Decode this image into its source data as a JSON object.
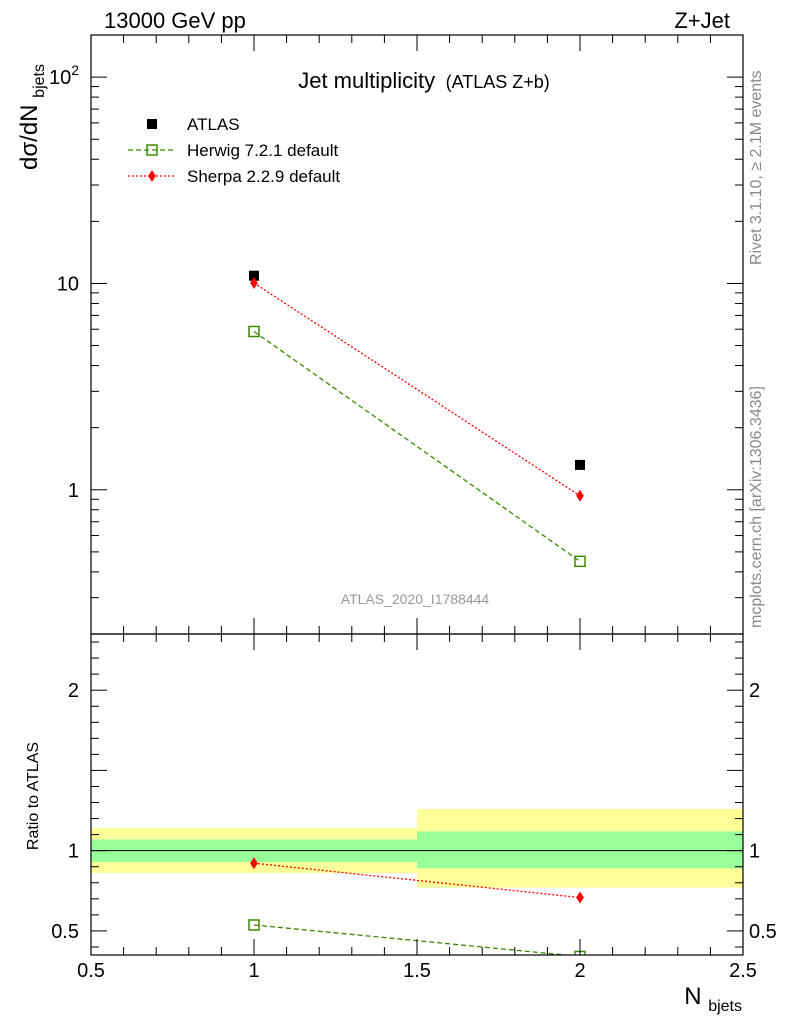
{
  "header": {
    "left": "13000 GeV pp",
    "right": "Z+Jet"
  },
  "side_text": {
    "rivet": "Rivet 3.1.10, ≥ 2.1M events",
    "mcplots": "mcplots.cern.ch [arXiv:1306.3436]"
  },
  "chart_data": [
    {
      "panel": "main",
      "type": "scatter",
      "title": "Jet multiplicity",
      "subtitle": "(ATLAS Z+b)",
      "ylabel": "dσ/dN",
      "ylabel_sub": "bjets",
      "yscale": "log",
      "ylim": [
        0.2,
        160
      ],
      "xlim": [
        0.5,
        2.5
      ],
      "y_ticks": [
        {
          "value": 1,
          "label": "1"
        },
        {
          "value": 10,
          "label": "10"
        },
        {
          "value": 100,
          "label": "10",
          "sup": "2"
        }
      ],
      "watermark": "ATLAS_2020_I1788444",
      "legend_position": "top-left",
      "series": [
        {
          "name": "ATLAS",
          "x": [
            1,
            2
          ],
          "values": [
            10.9,
            1.32
          ],
          "color": "#000000",
          "marker": "filled-square"
        },
        {
          "name": "Herwig 7.2.1 default",
          "x": [
            1,
            2
          ],
          "values": [
            5.85,
            0.45
          ],
          "color": "#3a8a00",
          "marker": "open-square",
          "line": "dashed"
        },
        {
          "name": "Sherpa 2.2.9 default",
          "x": [
            1,
            2
          ],
          "values": [
            10.05,
            0.935
          ],
          "color": "#ff0000",
          "marker": "diamond",
          "line": "dotted"
        }
      ]
    },
    {
      "panel": "ratio",
      "type": "line",
      "ylabel": "Ratio to ATLAS",
      "xlabel": "N",
      "xlabel_sub": "bjets",
      "ylim": [
        0.35,
        2.35
      ],
      "xlim": [
        0.5,
        2.5
      ],
      "x_ticks": [
        {
          "value": 0.5,
          "label": "0.5"
        },
        {
          "value": 1,
          "label": "1"
        },
        {
          "value": 1.5,
          "label": "1.5"
        },
        {
          "value": 2,
          "label": "2"
        },
        {
          "value": 2.5,
          "label": "2.5"
        }
      ],
      "y_ticks": [
        {
          "value": 0.5,
          "label": "0.5"
        },
        {
          "value": 1,
          "label": "1"
        },
        {
          "value": 2,
          "label": "2"
        }
      ],
      "bands": [
        {
          "x0": 0.5,
          "x1": 1.5,
          "inner": [
            0.93,
            1.07
          ],
          "outer": [
            0.86,
            1.14
          ]
        },
        {
          "x0": 1.5,
          "x1": 2.5,
          "inner": [
            0.89,
            1.12
          ],
          "outer": [
            0.77,
            1.26
          ]
        }
      ],
      "series": [
        {
          "name": "Herwig 7.2.1 default",
          "x": [
            1,
            2
          ],
          "values": [
            0.537,
            0.341
          ],
          "color": "#3a8a00",
          "marker": "open-square",
          "line": "dashed"
        },
        {
          "name": "Sherpa 2.2.9 default",
          "x": [
            1,
            2
          ],
          "values": [
            0.922,
            0.708
          ],
          "color": "#ff0000",
          "marker": "diamond",
          "line": "dotted"
        }
      ],
      "colors": {
        "inner_band": "#99ff99",
        "outer_band": "#ffff99",
        "unity_line": "#000000"
      }
    }
  ]
}
